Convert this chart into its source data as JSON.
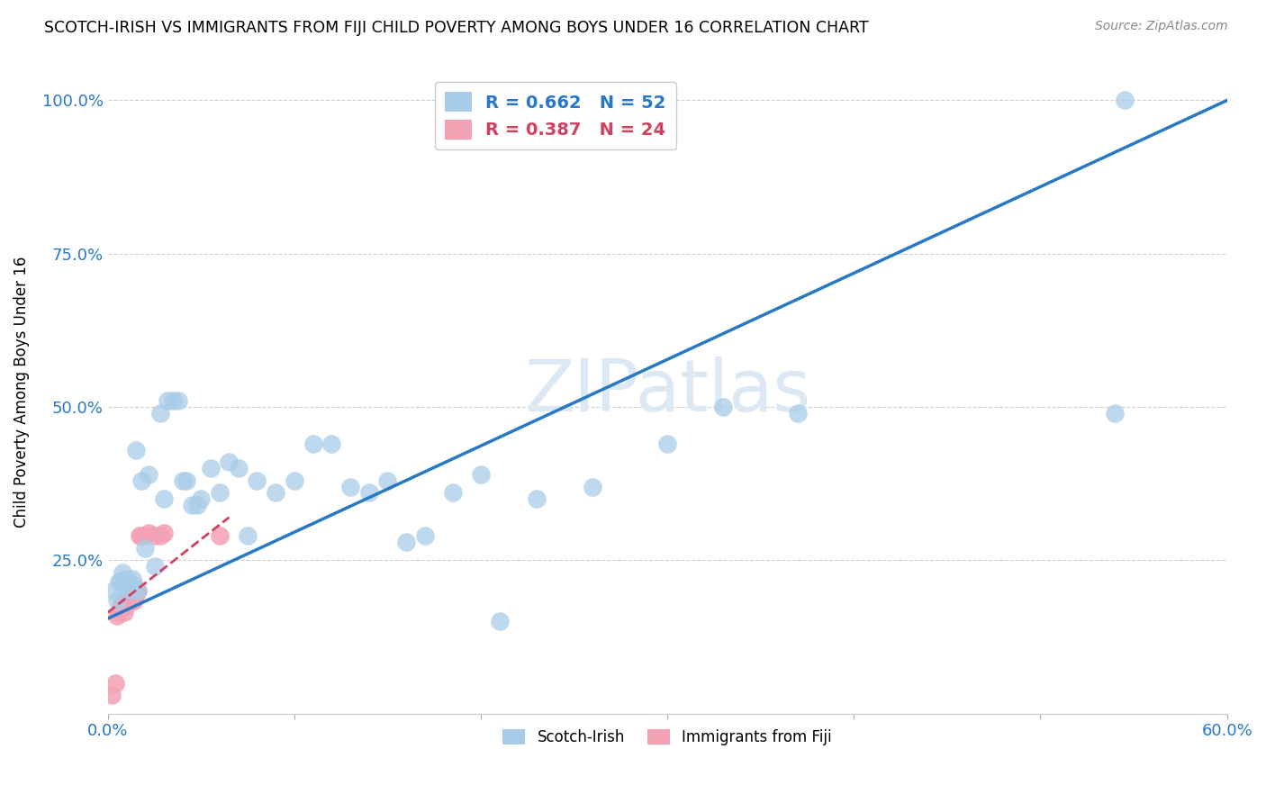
{
  "title": "SCOTCH-IRISH VS IMMIGRANTS FROM FIJI CHILD POVERTY AMONG BOYS UNDER 16 CORRELATION CHART",
  "source": "Source: ZipAtlas.com",
  "ylabel": "Child Poverty Among Boys Under 16",
  "xlim": [
    0.0,
    0.6
  ],
  "ylim": [
    0.0,
    1.05
  ],
  "xtick_positions": [
    0.0,
    0.1,
    0.2,
    0.3,
    0.4,
    0.5,
    0.6
  ],
  "xtick_labels": [
    "0.0%",
    "",
    "",
    "",
    "",
    "",
    "60.0%"
  ],
  "ytick_positions": [
    0.0,
    0.25,
    0.5,
    0.75,
    1.0
  ],
  "ytick_labels": [
    "",
    "25.0%",
    "50.0%",
    "75.0%",
    "100.0%"
  ],
  "blue_color": "#a8cce8",
  "pink_color": "#f4a0b5",
  "blue_line_color": "#2878c8",
  "pink_line_color": "#d04060",
  "grid_color": "#d0d0d0",
  "watermark_color": "#dce8f4",
  "scotch_irish_R": 0.662,
  "scotch_irish_N": 52,
  "fiji_R": 0.387,
  "fiji_N": 24,
  "scotch_irish_x": [
    0.003,
    0.005,
    0.006,
    0.007,
    0.008,
    0.009,
    0.01,
    0.01,
    0.012,
    0.013,
    0.014,
    0.015,
    0.016,
    0.018,
    0.02,
    0.022,
    0.025,
    0.028,
    0.03,
    0.032,
    0.035,
    0.038,
    0.04,
    0.042,
    0.045,
    0.048,
    0.05,
    0.055,
    0.06,
    0.065,
    0.07,
    0.075,
    0.08,
    0.09,
    0.1,
    0.11,
    0.12,
    0.13,
    0.14,
    0.15,
    0.16,
    0.17,
    0.185,
    0.2,
    0.21,
    0.23,
    0.26,
    0.3,
    0.33,
    0.37,
    0.54,
    0.545
  ],
  "scotch_irish_y": [
    0.2,
    0.185,
    0.215,
    0.215,
    0.23,
    0.21,
    0.215,
    0.22,
    0.2,
    0.22,
    0.21,
    0.43,
    0.2,
    0.38,
    0.27,
    0.39,
    0.24,
    0.49,
    0.35,
    0.51,
    0.51,
    0.51,
    0.38,
    0.38,
    0.34,
    0.34,
    0.35,
    0.4,
    0.36,
    0.41,
    0.4,
    0.29,
    0.38,
    0.36,
    0.38,
    0.44,
    0.44,
    0.37,
    0.36,
    0.38,
    0.28,
    0.29,
    0.36,
    0.39,
    0.15,
    0.35,
    0.37,
    0.44,
    0.5,
    0.49,
    0.49,
    1.0
  ],
  "fiji_x": [
    0.002,
    0.004,
    0.005,
    0.006,
    0.007,
    0.008,
    0.009,
    0.01,
    0.01,
    0.011,
    0.012,
    0.013,
    0.014,
    0.015,
    0.015,
    0.016,
    0.017,
    0.018,
    0.02,
    0.022,
    0.025,
    0.028,
    0.03,
    0.06
  ],
  "fiji_y": [
    0.03,
    0.05,
    0.16,
    0.165,
    0.175,
    0.175,
    0.165,
    0.185,
    0.175,
    0.19,
    0.19,
    0.185,
    0.185,
    0.195,
    0.2,
    0.2,
    0.29,
    0.29,
    0.29,
    0.295,
    0.29,
    0.29,
    0.295,
    0.29
  ],
  "blue_line_x": [
    0.0,
    0.6
  ],
  "blue_line_y": [
    0.155,
    1.0
  ],
  "pink_line_x": [
    0.0,
    0.065
  ],
  "pink_line_y": [
    0.165,
    0.32
  ]
}
